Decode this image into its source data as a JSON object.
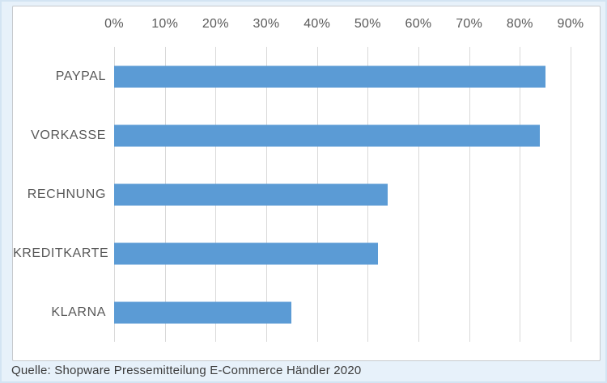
{
  "page": {
    "background_color": "#e7f1fa",
    "frame_border_color": "#d3e4f3",
    "panel_background": "#ffffff",
    "panel_border_color": "#c6c9cc"
  },
  "chart_data": {
    "type": "bar",
    "orientation": "horizontal",
    "categories": [
      "PAYPAL",
      "VORKASSE",
      "RECHNUNG",
      "KREDITKARTE",
      "KLARNA"
    ],
    "values": [
      85,
      84,
      54,
      52,
      35
    ],
    "value_unit": "%",
    "title": "",
    "xlabel": "",
    "ylabel": "",
    "x_axis": {
      "position": "top",
      "min": 0,
      "max": 90,
      "tick_step": 10,
      "tick_labels": [
        "0%",
        "10%",
        "20%",
        "30%",
        "40%",
        "50%",
        "60%",
        "70%",
        "80%",
        "90%"
      ]
    },
    "grid": "vertical",
    "legend": "none",
    "bar_color": "#5b9bd5",
    "gridline_color": "#d9d9d9",
    "axis_text_color": "#595959"
  },
  "source": {
    "text": "Quelle: Shopware Pressemitteilung E-Commerce Händler 2020"
  }
}
